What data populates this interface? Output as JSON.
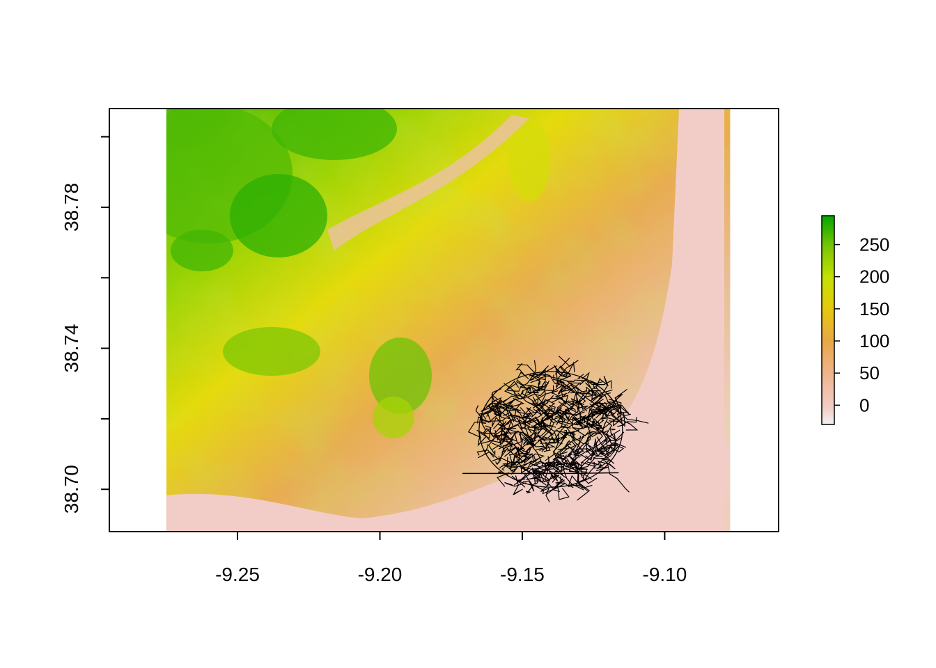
{
  "chart_data": {
    "type": "heatmap",
    "title": "",
    "xlabel": "",
    "ylabel": "",
    "xlim": [
      -9.295,
      -9.06
    ],
    "ylim": [
      38.688,
      38.808
    ],
    "raster_extent": {
      "x": [
        -9.275,
        -9.077
      ],
      "y": [
        38.688,
        38.808
      ]
    },
    "x_ticks": [
      -9.25,
      -9.2,
      -9.15,
      -9.1
    ],
    "x_tick_labels": [
      "-9.25",
      "-9.20",
      "-9.15",
      "-9.10"
    ],
    "y_ticks": [
      38.7,
      38.72,
      38.74,
      38.76,
      38.78,
      38.8
    ],
    "y_tick_labels": [
      "38.70",
      "",
      "38.74",
      "",
      "38.78",
      ""
    ],
    "legend": {
      "placement": "right",
      "range": [
        -30,
        295
      ],
      "ticks": [
        0,
        50,
        100,
        150,
        200,
        250
      ],
      "tick_labels": [
        "0",
        "50",
        "100",
        "150",
        "200",
        "250"
      ],
      "colors": [
        "#F2CDC7",
        "#EDB48A",
        "#E9A745",
        "#E6C810",
        "#C5E105",
        "#7CC704",
        "#00A600"
      ]
    },
    "overlay": {
      "type": "road-network",
      "color": "#000000",
      "center": [
        -9.14,
        38.717
      ],
      "x_range": [
        -9.171,
        -9.118
      ],
      "y_range": [
        38.704,
        38.745
      ]
    }
  }
}
